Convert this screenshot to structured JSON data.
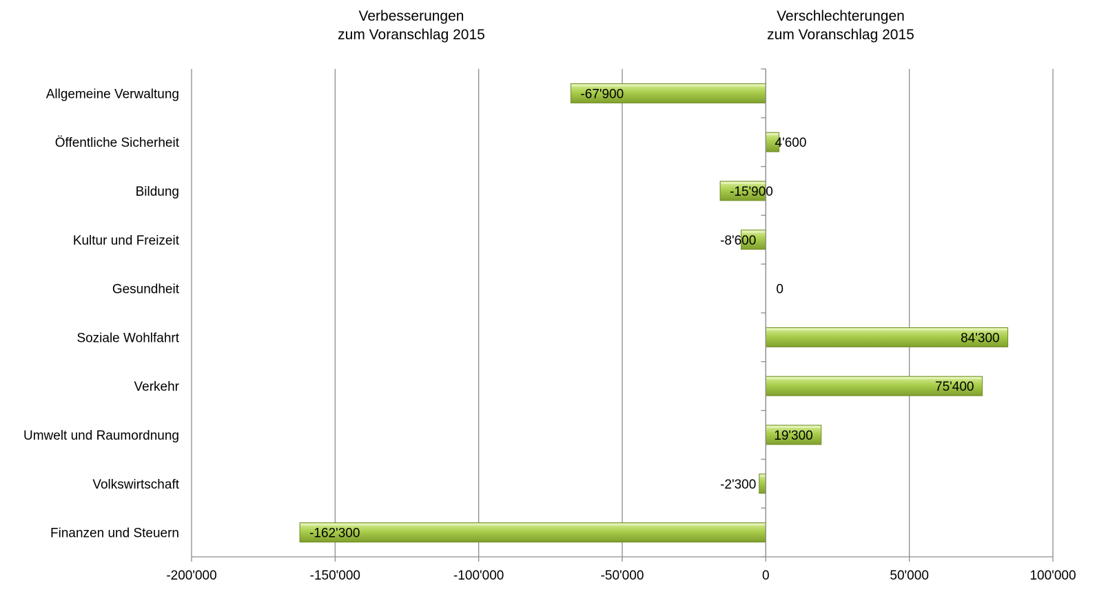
{
  "chart_data": {
    "type": "bar",
    "orientation": "horizontal",
    "header_left": [
      "Verbesserungen",
      "zum Voranschlag 2015"
    ],
    "header_right": [
      "Verschlechterungen",
      "zum Voranschlag 2015"
    ],
    "categories": [
      "Allgemeine Verwaltung",
      "Öffentliche Sicherheit",
      "Bildung",
      "Kultur und Freizeit",
      "Gesundheit",
      "Soziale Wohlfahrt",
      "Verkehr",
      "Umwelt und Raumordnung",
      "Volkswirtschaft",
      "Finanzen und Steuern"
    ],
    "values": [
      -67900,
      4600,
      -15900,
      -8600,
      0,
      84300,
      75400,
      19300,
      -2300,
      -162300
    ],
    "value_labels": [
      "-67'900",
      "4'600",
      "-15'900",
      "-8'600",
      "0",
      "84'300",
      "75'400",
      "19'300",
      "-2'300",
      "-162'300"
    ],
    "xlim": [
      -200000,
      100000
    ],
    "xticks": [
      -200000,
      -150000,
      -100000,
      -50000,
      0,
      50000,
      100000
    ],
    "xtick_labels": [
      "-200'000",
      "-150'000",
      "-100'000",
      "-50'000",
      "0",
      "50'000",
      "100'000"
    ],
    "grid": "vertical",
    "legend": "none",
    "bar_color": "#9bbb3a",
    "bar_edge_color": "#6f8a25"
  }
}
